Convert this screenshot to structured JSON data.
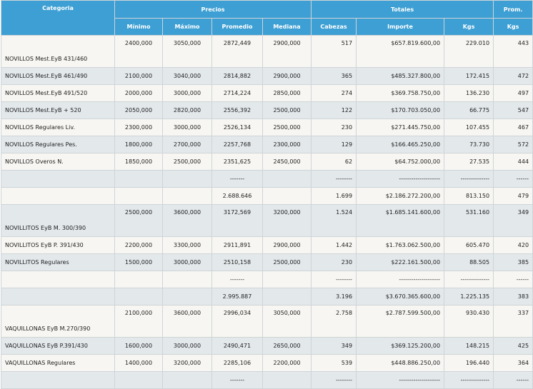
{
  "headers": {
    "categoria": "Categoria",
    "precios": "Precios",
    "totales": "Totales",
    "prom": "Prom.",
    "minimo": "Mínimo",
    "maximo": "Máximo",
    "promedio": "Promedio",
    "mediana": "Mediana",
    "cabezas": "Cabezas",
    "importe": "Importe",
    "kgs": "Kgs",
    "prom_kgs": "Kgs"
  },
  "rows": [
    {
      "categoria": "NOVILLOS Mest.EyB 431/460",
      "minimo": "2400,000",
      "maximo": "3050,000",
      "promedio": "2872,449",
      "mediana": "2900,000",
      "cabezas": "517",
      "importe": "$657.819.600,00",
      "kgs": "229.010",
      "prom": "443"
    },
    {
      "categoria": "NOVILLOS Mest.EyB 461/490",
      "minimo": "2100,000",
      "maximo": "3040,000",
      "promedio": "2814,882",
      "mediana": "2900,000",
      "cabezas": "365",
      "importe": "$485.327.800,00",
      "kgs": "172.415",
      "prom": "472"
    },
    {
      "categoria": "NOVILLOS Mest.EyB 491/520",
      "minimo": "2000,000",
      "maximo": "3000,000",
      "promedio": "2714,224",
      "mediana": "2850,000",
      "cabezas": "274",
      "importe": "$369.758.750,00",
      "kgs": "136.230",
      "prom": "497"
    },
    {
      "categoria": "NOVILLOS Mest.EyB + 520",
      "minimo": "2050,000",
      "maximo": "2820,000",
      "promedio": "2556,392",
      "mediana": "2500,000",
      "cabezas": "122",
      "importe": "$170.703.050,00",
      "kgs": "66.775",
      "prom": "547"
    },
    {
      "categoria": "NOVILLOS Regulares Liv.",
      "minimo": "2300,000",
      "maximo": "3000,000",
      "promedio": "2526,134",
      "mediana": "2500,000",
      "cabezas": "230",
      "importe": "$271.445.750,00",
      "kgs": "107.455",
      "prom": "467"
    },
    {
      "categoria": "NOVILLOS Regulares Pes.",
      "minimo": "1800,000",
      "maximo": "2700,000",
      "promedio": "2257,768",
      "mediana": "2300,000",
      "cabezas": "129",
      "importe": "$166.465.250,00",
      "kgs": "73.730",
      "prom": "572"
    },
    {
      "categoria": "NOVILLOS Overos N.",
      "minimo": "1850,000",
      "maximo": "2500,000",
      "promedio": "2351,625",
      "mediana": "2450,000",
      "cabezas": "62",
      "importe": "$64.752.000,00",
      "kgs": "27.535",
      "prom": "444"
    },
    {
      "categoria": "",
      "minimo": "",
      "maximo": "",
      "promedio": "-------",
      "mediana": "",
      "cabezas": "--------",
      "importe": "--------------------",
      "kgs": "--------------",
      "prom": "------"
    },
    {
      "categoria": "",
      "minimo": "",
      "maximo": "",
      "promedio": "2.688.646",
      "mediana": "",
      "cabezas": "1.699",
      "importe": "$2.186.272.200,00",
      "kgs": "813.150",
      "prom": "479"
    },
    {
      "categoria": "NOVILLITOS EyB M. 300/390",
      "minimo": "2500,000",
      "maximo": "3600,000",
      "promedio": "3172,569",
      "mediana": "3200,000",
      "cabezas": "1.524",
      "importe": "$1.685.141.600,00",
      "kgs": "531.160",
      "prom": "349"
    },
    {
      "categoria": "NOVILLITOS EyB P. 391/430",
      "minimo": "2200,000",
      "maximo": "3300,000",
      "promedio": "2911,891",
      "mediana": "2900,000",
      "cabezas": "1.442",
      "importe": "$1.763.062.500,00",
      "kgs": "605.470",
      "prom": "420"
    },
    {
      "categoria": "NOVILLITOS Regulares",
      "minimo": "1500,000",
      "maximo": "3000,000",
      "promedio": "2510,158",
      "mediana": "2500,000",
      "cabezas": "230",
      "importe": "$222.161.500,00",
      "kgs": "88.505",
      "prom": "385"
    },
    {
      "categoria": "",
      "minimo": "",
      "maximo": "",
      "promedio": "-------",
      "mediana": "",
      "cabezas": "--------",
      "importe": "--------------------",
      "kgs": "--------------",
      "prom": "------"
    },
    {
      "categoria": "",
      "minimo": "",
      "maximo": "",
      "promedio": "2.995.887",
      "mediana": "",
      "cabezas": "3.196",
      "importe": "$3.670.365.600,00",
      "kgs": "1.225.135",
      "prom": "383"
    },
    {
      "categoria": "VAQUILLONAS EyB M.270/390",
      "minimo": "2100,000",
      "maximo": "3600,000",
      "promedio": "2996,034",
      "mediana": "3050,000",
      "cabezas": "2.758",
      "importe": "$2.787.599.500,00",
      "kgs": "930.430",
      "prom": "337"
    },
    {
      "categoria": "VAQUILLONAS EyB P.391/430",
      "minimo": "1600,000",
      "maximo": "3000,000",
      "promedio": "2490,471",
      "mediana": "2650,000",
      "cabezas": "349",
      "importe": "$369.125.200,00",
      "kgs": "148.215",
      "prom": "425"
    },
    {
      "categoria": "VAQUILLONAS Regulares",
      "minimo": "1400,000",
      "maximo": "3200,000",
      "promedio": "2285,106",
      "mediana": "2200,000",
      "cabezas": "539",
      "importe": "$448.886.250,00",
      "kgs": "196.440",
      "prom": "364"
    },
    {
      "categoria": "",
      "minimo": "",
      "maximo": "",
      "promedio": "-------",
      "mediana": "",
      "cabezas": "--------",
      "importe": "--------------------",
      "kgs": "--------------",
      "prom": "------"
    }
  ]
}
